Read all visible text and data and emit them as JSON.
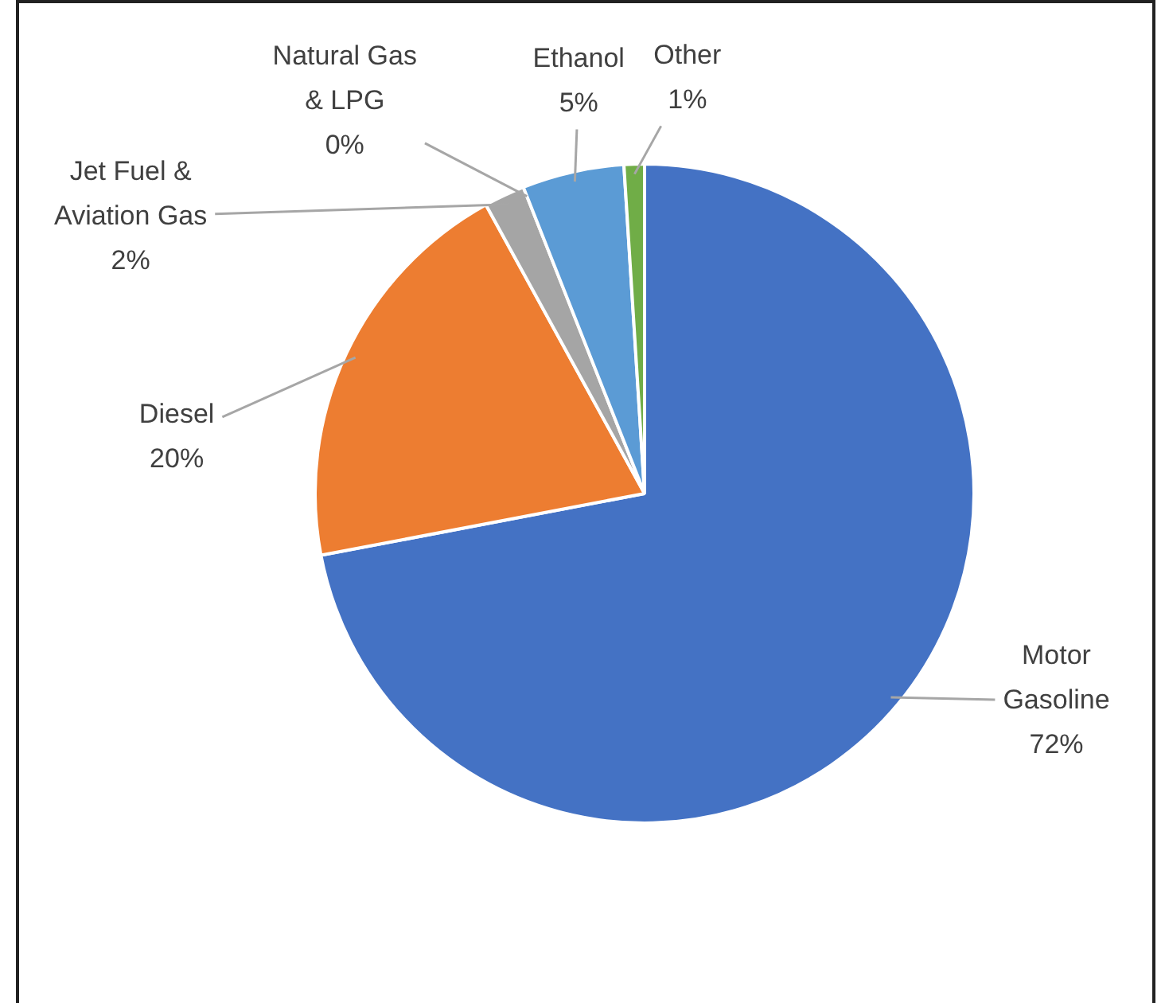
{
  "chart_data": {
    "type": "pie",
    "categories": [
      "Motor Gasoline",
      "Diesel",
      "Jet Fuel & Aviation Gas",
      "Natural Gas & LPG",
      "Ethanol",
      "Other"
    ],
    "values": [
      72,
      20,
      2,
      0,
      5,
      1
    ],
    "colors": [
      "#4472c4",
      "#ed7d31",
      "#a5a5a5",
      "#ffc000",
      "#5b9bd5",
      "#70ad47"
    ],
    "value_labels": [
      "72%",
      "20%",
      "2%",
      "0%",
      "5%",
      "1%"
    ],
    "legend": false
  }
}
